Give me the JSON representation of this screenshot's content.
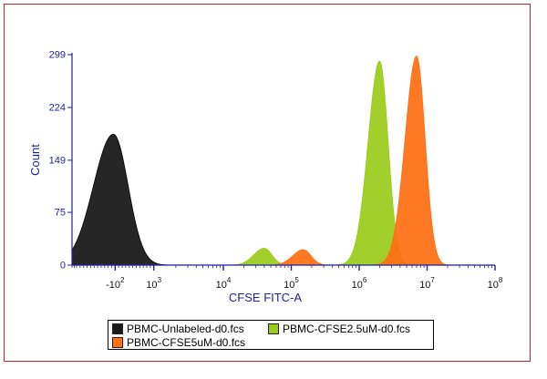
{
  "chart_data": {
    "type": "area",
    "xlabel": "CFSE FITC-A",
    "ylabel": "Count",
    "ylim": [
      0,
      299
    ],
    "y_ticks": [
      "0",
      "75",
      "149",
      "224",
      "299"
    ],
    "x_scale": "biexponential",
    "x_ticks": [
      {
        "label": "-10",
        "exp": "2",
        "value": -100
      },
      {
        "label": "10",
        "exp": "3",
        "value": 1000
      },
      {
        "label": "10",
        "exp": "4",
        "value": 10000
      },
      {
        "label": "10",
        "exp": "5",
        "value": 100000
      },
      {
        "label": "10",
        "exp": "6",
        "value": 1000000
      },
      {
        "label": "10",
        "exp": "7",
        "value": 10000000
      },
      {
        "label": "10",
        "exp": "8",
        "value": 100000000
      }
    ],
    "legend_position": "bottom",
    "series": [
      {
        "name": "PBMC-Unlabeled-d0.fcs",
        "color": "#1a1a1a",
        "peaks": [
          {
            "x": -150,
            "count": 186
          }
        ]
      },
      {
        "name": "PBMC-CFSE2.5uM-d0.fcs",
        "color": "#99cc1a",
        "peaks": [
          {
            "x": 40000,
            "count": 24
          },
          {
            "x": 2000000,
            "count": 290
          }
        ]
      },
      {
        "name": "PBMC-CFSE5uM-d0.fcs",
        "color": "#ff6e11",
        "peaks": [
          {
            "x": 150000,
            "count": 22
          },
          {
            "x": 7000000,
            "count": 297
          }
        ]
      }
    ]
  },
  "colors": {
    "axis": "#1f1f9e",
    "frame": "#c0242a"
  }
}
